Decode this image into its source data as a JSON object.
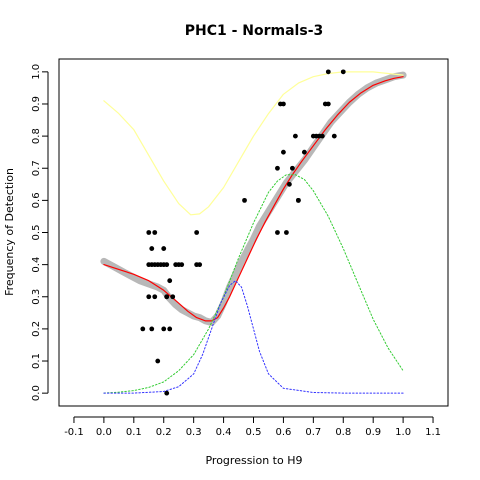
{
  "chart_data": {
    "type": "scatter",
    "title": "PHC1 - Normals-3",
    "xlabel": "Progression to H9",
    "ylabel": "Frequency of Detection",
    "xlim": [
      -0.15,
      1.15
    ],
    "ylim": [
      -0.04,
      1.04
    ],
    "xticks": [
      -0.1,
      0.0,
      0.1,
      0.2,
      0.3,
      0.4,
      0.5,
      0.6,
      0.7,
      0.8,
      0.9,
      1.0,
      1.1
    ],
    "xtick_labels": [
      "-0.1",
      "0.0",
      "0.1",
      "0.2",
      "0.3",
      "0.4",
      "0.5",
      "0.6",
      "0.7",
      "0.8",
      "0.9",
      "1.0",
      "1.1"
    ],
    "yticks": [
      0.0,
      0.1,
      0.2,
      0.3,
      0.4,
      0.5,
      0.6,
      0.7,
      0.8,
      0.9,
      1.0
    ],
    "ytick_labels": [
      "0.0",
      "0.1",
      "0.2",
      "0.3",
      "0.4",
      "0.5",
      "0.6",
      "0.7",
      "0.8",
      "0.9",
      "1.0"
    ],
    "grid": false,
    "points": {
      "color": "#000000",
      "x": [
        0.15,
        0.16,
        0.17,
        0.18,
        0.19,
        0.2,
        0.21,
        0.22,
        0.24,
        0.25,
        0.26,
        0.31,
        0.32,
        0.15,
        0.17,
        0.21,
        0.23,
        0.15,
        0.16,
        0.2,
        0.21,
        0.13,
        0.16,
        0.2,
        0.22,
        0.18,
        0.21,
        0.17,
        0.31,
        0.47,
        0.58,
        0.59,
        0.6,
        0.61,
        0.58,
        0.6,
        0.62,
        0.63,
        0.65,
        0.64,
        0.65,
        0.67,
        0.7,
        0.71,
        0.72,
        0.73,
        0.74,
        0.75,
        0.77,
        0.75,
        0.8
      ],
      "y": [
        0.4,
        0.4,
        0.4,
        0.4,
        0.4,
        0.4,
        0.4,
        0.35,
        0.4,
        0.4,
        0.4,
        0.4,
        0.4,
        0.3,
        0.3,
        0.3,
        0.3,
        0.5,
        0.45,
        0.45,
        0.3,
        0.2,
        0.2,
        0.2,
        0.2,
        0.1,
        0.0,
        0.5,
        0.5,
        0.6,
        0.5,
        0.9,
        0.9,
        0.5,
        0.7,
        0.75,
        0.65,
        0.7,
        0.6,
        0.8,
        0.6,
        0.75,
        0.8,
        0.8,
        0.8,
        0.8,
        0.9,
        0.9,
        0.8,
        1.0,
        1.0
      ]
    },
    "series": [
      {
        "color": "#b8b8b8",
        "style": "thick-band",
        "x": [
          0.0,
          0.03,
          0.06,
          0.09,
          0.12,
          0.15,
          0.18,
          0.2,
          0.22,
          0.24,
          0.26,
          0.28,
          0.3,
          0.32,
          0.34,
          0.36,
          0.38,
          0.4,
          0.42,
          0.44,
          0.46,
          0.48,
          0.5,
          0.52,
          0.55,
          0.58,
          0.61,
          0.64,
          0.67,
          0.7,
          0.73,
          0.76,
          0.79,
          0.82,
          0.85,
          0.88,
          0.91,
          0.94,
          0.97,
          1.0
        ],
        "y": [
          0.41,
          0.395,
          0.38,
          0.365,
          0.35,
          0.34,
          0.33,
          0.32,
          0.295,
          0.275,
          0.26,
          0.25,
          0.24,
          0.235,
          0.225,
          0.22,
          0.24,
          0.28,
          0.33,
          0.37,
          0.41,
          0.445,
          0.48,
          0.52,
          0.565,
          0.61,
          0.655,
          0.69,
          0.725,
          0.765,
          0.805,
          0.845,
          0.875,
          0.905,
          0.93,
          0.95,
          0.965,
          0.975,
          0.985,
          0.99
        ]
      },
      {
        "color": "#ff0000",
        "style": "solid",
        "x": [
          0.0,
          0.05,
          0.1,
          0.15,
          0.2,
          0.25,
          0.28,
          0.31,
          0.34,
          0.36,
          0.38,
          0.4,
          0.42,
          0.45,
          0.48,
          0.51,
          0.54,
          0.57,
          0.6,
          0.63,
          0.66,
          0.7,
          0.74,
          0.78,
          0.82,
          0.86,
          0.9,
          0.94,
          0.97,
          1.0
        ],
        "y": [
          0.4,
          0.385,
          0.37,
          0.35,
          0.32,
          0.28,
          0.255,
          0.235,
          0.225,
          0.225,
          0.235,
          0.265,
          0.3,
          0.36,
          0.42,
          0.48,
          0.535,
          0.585,
          0.635,
          0.68,
          0.72,
          0.77,
          0.82,
          0.865,
          0.905,
          0.935,
          0.958,
          0.972,
          0.98,
          0.985
        ]
      },
      {
        "color": "#ffff99",
        "style": "solid",
        "x": [
          0.0,
          0.05,
          0.1,
          0.15,
          0.2,
          0.25,
          0.29,
          0.32,
          0.35,
          0.4,
          0.45,
          0.5,
          0.55,
          0.6,
          0.65,
          0.7,
          0.75,
          0.8,
          0.85,
          0.9,
          0.95,
          1.0
        ],
        "y": [
          0.91,
          0.87,
          0.82,
          0.74,
          0.66,
          0.59,
          0.555,
          0.558,
          0.58,
          0.64,
          0.72,
          0.8,
          0.87,
          0.93,
          0.965,
          0.985,
          0.995,
          1.0,
          1.0,
          1.0,
          0.995,
          0.99
        ]
      },
      {
        "color": "#33cc33",
        "style": "dotted",
        "x": [
          0.0,
          0.05,
          0.1,
          0.15,
          0.2,
          0.25,
          0.3,
          0.35,
          0.4,
          0.45,
          0.5,
          0.55,
          0.58,
          0.61,
          0.64,
          0.67,
          0.7,
          0.75,
          0.8,
          0.85,
          0.9,
          0.95,
          1.0
        ],
        "y": [
          0.0,
          0.003,
          0.008,
          0.018,
          0.035,
          0.07,
          0.12,
          0.2,
          0.3,
          0.42,
          0.53,
          0.625,
          0.66,
          0.68,
          0.68,
          0.665,
          0.63,
          0.55,
          0.45,
          0.34,
          0.23,
          0.14,
          0.07
        ]
      },
      {
        "color": "#3333ff",
        "style": "dotted",
        "x": [
          0.0,
          0.1,
          0.2,
          0.25,
          0.3,
          0.33,
          0.36,
          0.39,
          0.42,
          0.44,
          0.46,
          0.48,
          0.5,
          0.52,
          0.55,
          0.6,
          0.7,
          0.8,
          0.9,
          1.0
        ],
        "y": [
          0.0,
          0.0,
          0.005,
          0.02,
          0.06,
          0.12,
          0.2,
          0.28,
          0.335,
          0.35,
          0.33,
          0.27,
          0.2,
          0.13,
          0.06,
          0.015,
          0.002,
          0.0,
          0.0,
          0.0
        ]
      }
    ]
  }
}
